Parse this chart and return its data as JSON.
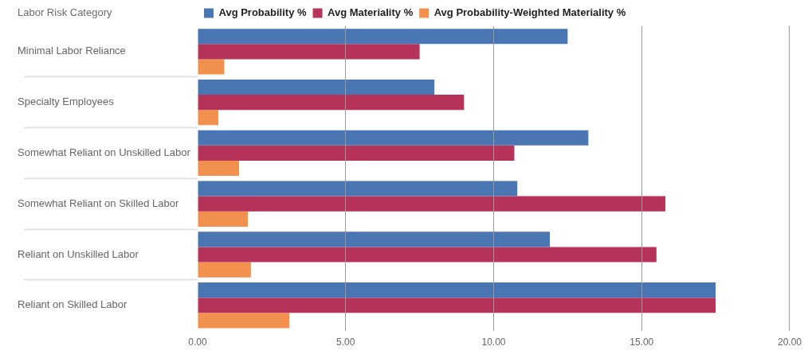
{
  "chart_data": {
    "type": "bar",
    "orientation": "horizontal",
    "ylabel": "Labor Risk Category",
    "categories": [
      "Minimal Labor Reliance",
      "Specialty Employees",
      "Somewhat Reliant on Unskilled Labor",
      "Somewhat Reliant on Skilled Labor",
      "Reliant on Unskilled Labor",
      "Reliant on Skilled Labor"
    ],
    "series": [
      {
        "name": "Avg Probability %",
        "color": "#4a76b4",
        "values": [
          12.5,
          8.0,
          13.2,
          10.8,
          11.9,
          17.5
        ]
      },
      {
        "name": "Avg Materiality %",
        "color": "#b6345a",
        "values": [
          7.5,
          9.0,
          10.7,
          15.8,
          15.5,
          17.5
        ]
      },
      {
        "name": "Avg Probability-Weighted Materiality %",
        "color": "#f2904e",
        "values": [
          0.9,
          0.7,
          1.4,
          1.7,
          1.8,
          3.1
        ]
      }
    ],
    "xlim": [
      0,
      20
    ],
    "xticks": [
      {
        "value": 0,
        "label": "0.00"
      },
      {
        "value": 5,
        "label": "5.00"
      },
      {
        "value": 10,
        "label": "10.00"
      },
      {
        "value": 15,
        "label": "15.00"
      },
      {
        "value": 20,
        "label": "20.00"
      }
    ],
    "grid": "x",
    "legend": "top left"
  }
}
